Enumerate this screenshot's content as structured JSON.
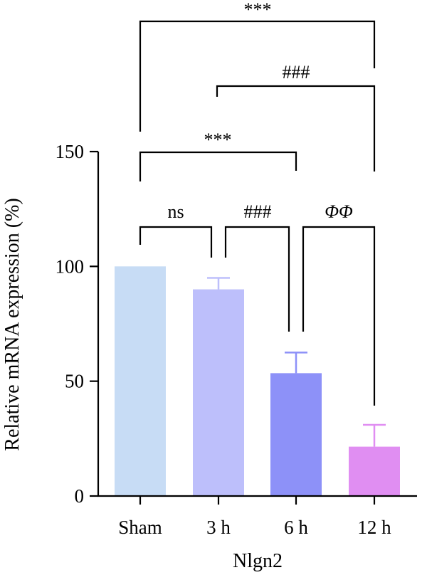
{
  "chart_data": {
    "type": "bar",
    "xlabel": "Nlgn2",
    "ylabel": "Relative mRNA expression (%)",
    "ylim": [
      0,
      150
    ],
    "yticks": [
      0,
      50,
      100,
      150
    ],
    "categories": [
      "Sham",
      "3 h",
      "6 h",
      "12 h"
    ],
    "values": [
      100,
      90,
      53.5,
      21.5
    ],
    "errors": [
      0,
      5,
      9,
      9.5
    ],
    "colors": [
      "#c7dcf5",
      "#bdbffb",
      "#8d91f8",
      "#e08ef2"
    ],
    "comparisons": [
      {
        "from": "Sham",
        "to": "3 h",
        "label": "ns"
      },
      {
        "from": "3 h",
        "to": "6 h",
        "label": "###"
      },
      {
        "from": "6 h",
        "to": "12 h",
        "label": "ΦΦ"
      },
      {
        "from": "Sham",
        "to": "6 h",
        "label": "***"
      },
      {
        "from": "3 h",
        "to": "12 h",
        "label": "###"
      },
      {
        "from": "Sham",
        "to": "12 h",
        "label": "***"
      }
    ]
  }
}
